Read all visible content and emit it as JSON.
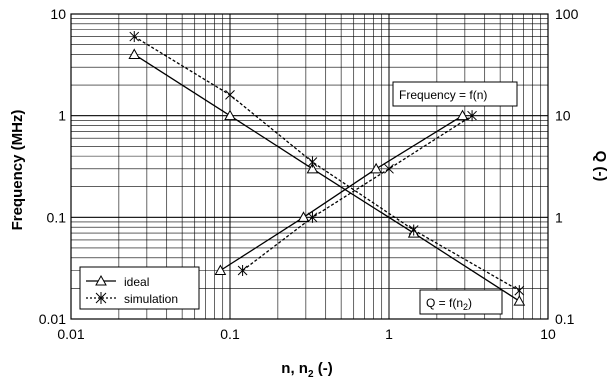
{
  "chart_data": {
    "type": "line",
    "xlabel": "n, n",
    "xlabel_sub": "2",
    "xlabel_tail": " (-)",
    "ylabel_left": "Frequency (MHz)",
    "ylabel_right": "Q (-)",
    "x_scale": "log",
    "y_left_scale": "log",
    "y_right_scale": "log",
    "xlim": [
      0.01,
      10
    ],
    "ylim_left": [
      0.01,
      10
    ],
    "ylim_right": [
      0.1,
      100
    ],
    "x_tick_labels": [
      "0.01",
      "0.1",
      "1",
      "10"
    ],
    "y_left_tick_labels": [
      "0.01",
      "0.1",
      "1",
      "10"
    ],
    "y_right_tick_labels": [
      "0.1",
      "1",
      "10",
      "100"
    ],
    "grid": true,
    "legend_position": "bottom-left",
    "legend": [
      {
        "key": "ideal",
        "label": "ideal",
        "marker": "triangle",
        "line": "solid"
      },
      {
        "key": "simulation",
        "label": "simulation",
        "marker": "star",
        "line": "dotted"
      }
    ],
    "annotations": {
      "frequency": "Frequency = f(n)",
      "q_prefix": "Q = f(n",
      "q_sub": "2",
      "q_suffix": ")"
    },
    "series": [
      {
        "key": "ideal",
        "curve": "frequency",
        "axis": "left",
        "points": [
          [
            0.025,
            4.0
          ],
          [
            0.1,
            1.0
          ],
          [
            0.33,
            0.3
          ],
          [
            1.43,
            0.07
          ],
          [
            6.6,
            0.015
          ]
        ]
      },
      {
        "key": "simulation",
        "curve": "frequency",
        "axis": "left",
        "points": [
          [
            0.025,
            6.0
          ],
          [
            0.1,
            1.6
          ],
          [
            0.33,
            0.35
          ],
          [
            1.43,
            0.075
          ],
          [
            6.6,
            0.019
          ]
        ]
      },
      {
        "key": "ideal",
        "curve": "q",
        "axis": "right",
        "points": [
          [
            0.087,
            0.3
          ],
          [
            0.29,
            1.0
          ],
          [
            0.83,
            3.0
          ],
          [
            2.9,
            10.0
          ]
        ]
      },
      {
        "key": "simulation",
        "curve": "q",
        "axis": "right",
        "points": [
          [
            0.12,
            0.3
          ],
          [
            0.33,
            1.0
          ],
          [
            1.0,
            3.0
          ],
          [
            3.33,
            10.0
          ]
        ]
      }
    ]
  }
}
